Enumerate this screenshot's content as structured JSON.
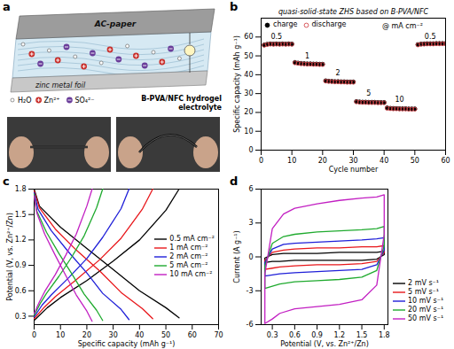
{
  "diagram": {
    "panel": "a",
    "top_layer": "AC-paper",
    "bottom_layer": "zinc metal foil",
    "electrolyte": "B-PVA/NFC hydrogel electrolyte",
    "ions": [
      "H₂O",
      "Zn²⁺",
      "SO₄²⁻"
    ]
  },
  "chart_data": [
    {
      "panel": "b",
      "type": "scatter",
      "title": "quasi-solid-state ZHS based on B-PVA/NFC",
      "x_label": "Cycle number",
      "y_label": "Specific capacity (mAh g⁻¹)",
      "xlim": [
        0,
        60
      ],
      "xticks": [
        0,
        10,
        20,
        30,
        40,
        50,
        60
      ],
      "ylim": [
        0,
        70
      ],
      "yticks": [
        0,
        10,
        20,
        30,
        40,
        50,
        60
      ],
      "legend": "upper left",
      "x": [
        1,
        2,
        3,
        4,
        5,
        6,
        7,
        8,
        9,
        10,
        11,
        12,
        13,
        14,
        15,
        16,
        17,
        18,
        19,
        20,
        21,
        22,
        23,
        24,
        25,
        26,
        27,
        28,
        29,
        30,
        31,
        32,
        33,
        34,
        35,
        36,
        37,
        38,
        39,
        40,
        41,
        42,
        43,
        44,
        45,
        46,
        47,
        48,
        49,
        50,
        51,
        52,
        53,
        54,
        55,
        56,
        57,
        58,
        59,
        60
      ],
      "series": [
        {
          "name": "charge",
          "color": "#000000",
          "marker": "filled circle",
          "values": [
            55.8,
            56.2,
            56.4,
            56.3,
            56.4,
            56.3,
            56.4,
            56.3,
            56.4,
            56.3,
            46.5,
            46.2,
            46.0,
            45.9,
            45.8,
            45.8,
            45.7,
            45.7,
            45.6,
            45.6,
            36.8,
            36.6,
            36.5,
            36.4,
            36.4,
            36.3,
            36.3,
            36.2,
            36.2,
            36.2,
            25.8,
            25.6,
            25.5,
            25.5,
            25.4,
            25.4,
            25.4,
            25.3,
            25.3,
            25.3,
            22.4,
            22.2,
            22.1,
            22.1,
            22.0,
            22.0,
            22.0,
            21.9,
            21.9,
            21.9,
            56.0,
            56.3,
            56.4,
            56.5,
            56.5,
            56.5,
            56.6,
            56.6,
            56.6,
            56.6
          ]
        },
        {
          "name": "discharge",
          "color": "#d2464b",
          "marker": "open circle",
          "values": [
            55.6,
            56.0,
            56.2,
            56.1,
            56.2,
            56.1,
            56.2,
            56.1,
            56.2,
            56.1,
            46.3,
            46.0,
            45.8,
            45.7,
            45.6,
            45.6,
            45.5,
            45.5,
            45.4,
            45.4,
            36.6,
            36.4,
            36.3,
            36.2,
            36.2,
            36.1,
            36.1,
            36.0,
            36.0,
            36.0,
            25.6,
            25.4,
            25.3,
            25.3,
            25.2,
            25.2,
            25.2,
            25.1,
            25.1,
            25.1,
            22.2,
            22.0,
            21.9,
            21.9,
            21.8,
            21.8,
            21.8,
            21.7,
            21.7,
            21.7,
            55.8,
            56.1,
            56.2,
            56.3,
            56.3,
            56.3,
            56.4,
            56.4,
            56.4,
            56.4
          ]
        }
      ],
      "annotations": [
        {
          "text": "0.5",
          "x": 5,
          "y": 60
        },
        {
          "text": "1",
          "x": 15,
          "y": 50
        },
        {
          "text": "2",
          "x": 25,
          "y": 41
        },
        {
          "text": "5",
          "x": 35,
          "y": 30
        },
        {
          "text": "10",
          "x": 45,
          "y": 27
        },
        {
          "text": "0.5",
          "x": 55,
          "y": 60
        },
        {
          "text": "@ mA cm⁻²",
          "x": 46,
          "y": 66
        }
      ]
    },
    {
      "panel": "c",
      "type": "line",
      "x_label": "Specific capacity (mAh g⁻¹)",
      "y_label": "Potential (V, vs. Zn²⁺/Zn)",
      "xlim": [
        0,
        70
      ],
      "xticks": [
        0,
        10,
        20,
        30,
        40,
        50,
        60,
        70
      ],
      "ylim": [
        0.2,
        1.8
      ],
      "yticks": [
        0.3,
        0.6,
        0.9,
        1.2,
        1.5,
        1.8
      ],
      "legend": "center right",
      "series": [
        {
          "name": "0.5 mA cm⁻²",
          "color": "#000000",
          "x": [
            0,
            5,
            10,
            20,
            30,
            40,
            50,
            55,
            null,
            0,
            2,
            10,
            20,
            30,
            40,
            50,
            55
          ],
          "values": [
            0.25,
            0.4,
            0.52,
            0.72,
            0.95,
            1.2,
            1.55,
            1.8,
            null,
            1.8,
            1.6,
            1.35,
            1.1,
            0.85,
            0.6,
            0.4,
            0.28
          ]
        },
        {
          "name": "1 mA cm⁻²",
          "color": "#e8171b",
          "x": [
            0,
            4,
            8,
            16,
            25,
            33,
            41,
            45,
            null,
            0,
            2,
            8,
            16,
            25,
            33,
            41,
            45
          ],
          "values": [
            0.27,
            0.41,
            0.53,
            0.73,
            0.97,
            1.22,
            1.56,
            1.8,
            null,
            1.78,
            1.58,
            1.33,
            1.08,
            0.83,
            0.58,
            0.39,
            0.27
          ]
        },
        {
          "name": "2 mA cm⁻²",
          "color": "#1f1fd8",
          "x": [
            0,
            3,
            6.5,
            13,
            20,
            26,
            33,
            36,
            null,
            0,
            1.5,
            6.5,
            13,
            20,
            26,
            33,
            36
          ],
          "values": [
            0.29,
            0.43,
            0.55,
            0.75,
            0.98,
            1.23,
            1.57,
            1.8,
            null,
            1.76,
            1.56,
            1.31,
            1.06,
            0.81,
            0.57,
            0.38,
            0.26
          ]
        },
        {
          "name": "5 mA cm⁻²",
          "color": "#1faa2e",
          "x": [
            0,
            2.3,
            4.7,
            9.4,
            14.3,
            19,
            23.7,
            26,
            null,
            0,
            1,
            4.7,
            9.4,
            14.3,
            19,
            23.7,
            26
          ],
          "values": [
            0.31,
            0.45,
            0.57,
            0.77,
            1.0,
            1.25,
            1.58,
            1.8,
            null,
            1.74,
            1.54,
            1.29,
            1.04,
            0.8,
            0.56,
            0.37,
            0.25
          ]
        },
        {
          "name": "10 mA cm⁻²",
          "color": "#c21fc2",
          "x": [
            0,
            2,
            4,
            8,
            12,
            16,
            20,
            22,
            null,
            0,
            1,
            4,
            8,
            12,
            16,
            20,
            22
          ],
          "values": [
            0.33,
            0.47,
            0.59,
            0.79,
            1.02,
            1.27,
            1.6,
            1.8,
            null,
            1.72,
            1.52,
            1.27,
            1.02,
            0.78,
            0.55,
            0.36,
            0.24
          ]
        }
      ]
    },
    {
      "panel": "d",
      "type": "line",
      "x_label": "Potential (V, vs. Zn²⁺/Zn)",
      "y_label": "Current (A g⁻¹)",
      "xlim": [
        0.15,
        1.85
      ],
      "xticks": [
        0.3,
        0.6,
        0.9,
        1.2,
        1.5,
        1.8
      ],
      "ylim": [
        -6,
        6
      ],
      "yticks": [
        -6,
        -3,
        0,
        3,
        6
      ],
      "legend": "right",
      "x": [
        0.2,
        0.3,
        0.45,
        0.6,
        0.9,
        1.2,
        1.5,
        1.7,
        1.8,
        1.8,
        1.7,
        1.5,
        1.2,
        0.9,
        0.6,
        0.4,
        0.3,
        0.2,
        0.2
      ],
      "series": [
        {
          "name": "2 mV s⁻¹",
          "color": "#000000",
          "values": [
            -0.1,
            0.2,
            0.3,
            0.3,
            0.3,
            0.4,
            0.4,
            0.4,
            0.5,
            0.2,
            -0.2,
            -0.3,
            -0.3,
            -0.3,
            -0.3,
            -0.4,
            -0.4,
            -0.5,
            -0.1
          ]
        },
        {
          "name": "5 mV s⁻¹",
          "color": "#e8171b",
          "values": [
            -0.3,
            0.4,
            0.6,
            0.7,
            0.8,
            0.8,
            0.9,
            0.9,
            1.0,
            0.4,
            -0.4,
            -0.6,
            -0.7,
            -0.7,
            -0.8,
            -0.9,
            -1.0,
            -1.1,
            -0.3
          ]
        },
        {
          "name": "10 mV s⁻¹",
          "color": "#1f1fd8",
          "values": [
            -0.5,
            0.7,
            1.1,
            1.2,
            1.3,
            1.4,
            1.5,
            1.6,
            1.7,
            0.6,
            -0.7,
            -1.1,
            -1.2,
            -1.3,
            -1.4,
            -1.5,
            -1.6,
            -1.7,
            -0.5
          ]
        },
        {
          "name": "20 mV s⁻¹",
          "color": "#1faa2e",
          "values": [
            -0.8,
            1.2,
            1.8,
            2.0,
            2.2,
            2.3,
            2.4,
            2.5,
            2.7,
            1.0,
            -1.2,
            -1.8,
            -2.0,
            -2.1,
            -2.2,
            -2.4,
            -2.6,
            -2.8,
            -0.8
          ]
        },
        {
          "name": "50 mV s⁻¹",
          "color": "#c21fc2",
          "values": [
            -1.5,
            2.5,
            3.8,
            4.3,
            4.7,
            5.0,
            5.2,
            5.3,
            5.5,
            2.0,
            -2.5,
            -3.8,
            -4.2,
            -4.4,
            -4.6,
            -5.0,
            -5.5,
            -5.9,
            -1.5
          ]
        }
      ]
    }
  ]
}
